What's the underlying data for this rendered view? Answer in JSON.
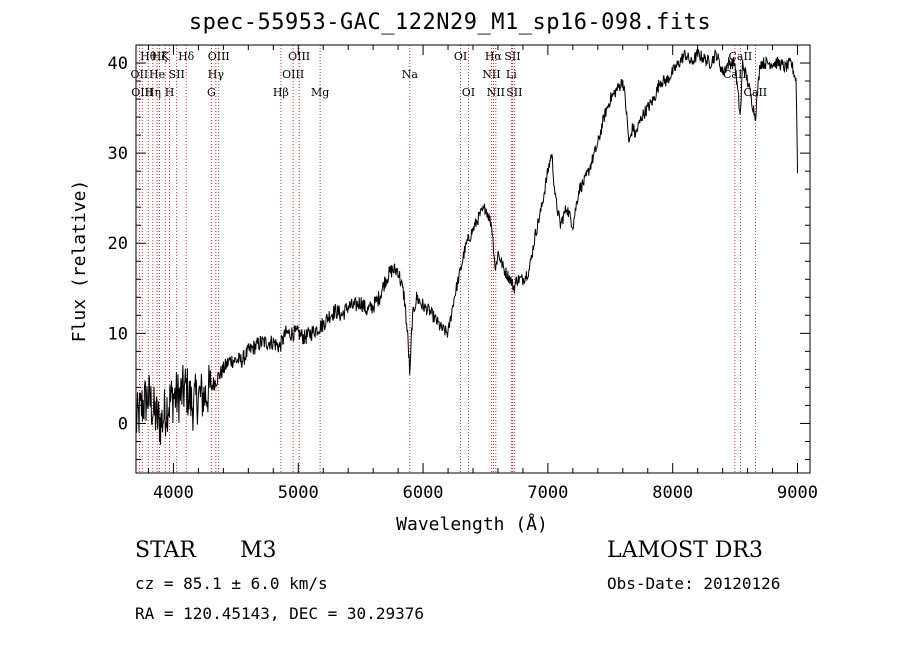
{
  "chart_data": {
    "type": "line",
    "title": "spec-55953-GAC_122N29_M1_sp16-098.fits",
    "xlabel": "Wavelength (Å)",
    "ylabel": "Flux (relative)",
    "xlim": [
      3700,
      9100
    ],
    "ylim": [
      -5.5,
      42
    ],
    "x_ticks": [
      4000,
      5000,
      6000,
      7000,
      8000,
      9000
    ],
    "y_ticks": [
      0,
      10,
      20,
      30,
      40
    ],
    "series": [
      {
        "name": "spectrum",
        "x": [
          3700,
          3750,
          3800,
          3850,
          3900,
          3950,
          4000,
          4050,
          4100,
          4150,
          4200,
          4250,
          4300,
          4350,
          4400,
          4450,
          4500,
          4550,
          4600,
          4650,
          4700,
          4750,
          4800,
          4850,
          4900,
          4950,
          5000,
          5050,
          5100,
          5150,
          5200,
          5250,
          5300,
          5350,
          5400,
          5450,
          5500,
          5550,
          5600,
          5650,
          5700,
          5750,
          5800,
          5850,
          5880,
          5895,
          5910,
          5930,
          5950,
          6000,
          6050,
          6100,
          6150,
          6200,
          6250,
          6300,
          6330,
          6350,
          6400,
          6450,
          6500,
          6550,
          6580,
          6600,
          6650,
          6700,
          6730,
          6750,
          6800,
          6850,
          6900,
          6950,
          7000,
          7030,
          7060,
          7100,
          7150,
          7200,
          7250,
          7300,
          7350,
          7400,
          7450,
          7500,
          7550,
          7600,
          7620,
          7650,
          7680,
          7700,
          7750,
          7800,
          7850,
          7900,
          7950,
          8000,
          8050,
          8100,
          8150,
          8200,
          8250,
          8300,
          8350,
          8400,
          8450,
          8498,
          8542,
          8560,
          8600,
          8662,
          8700,
          8750,
          8800,
          8850,
          8900,
          8950,
          8990,
          9000
        ],
        "y": [
          0,
          2,
          3,
          1,
          0,
          2,
          3,
          3,
          4,
          2,
          3,
          3,
          4,
          5,
          6,
          7,
          7,
          7,
          8,
          8.5,
          9,
          9,
          9,
          8.5,
          10,
          10,
          10,
          9.5,
          10,
          10.5,
          11,
          12,
          12.5,
          12,
          13,
          13,
          13.5,
          12.5,
          13,
          14,
          16,
          17,
          17,
          14,
          9,
          5,
          11,
          13,
          14,
          13,
          12.5,
          11.5,
          10.5,
          10,
          14,
          17,
          19,
          20,
          21.5,
          23,
          24,
          22,
          17,
          19,
          17,
          16,
          15,
          16,
          16,
          17,
          21,
          24,
          28,
          30,
          25,
          22,
          24,
          22,
          26,
          27,
          29,
          31,
          34,
          36,
          37,
          38,
          36,
          31,
          33,
          32,
          34,
          35,
          36,
          38,
          38,
          39,
          40,
          41,
          40,
          41,
          40.5,
          40,
          41,
          39,
          40,
          40,
          34,
          40,
          38,
          34,
          40,
          40,
          40,
          40,
          39.5,
          40,
          38,
          28
        ]
      }
    ],
    "line_markers": [
      {
        "x": 3727,
        "label": "OII",
        "row": 1
      },
      {
        "x": 3750,
        "label": "OIII",
        "row": 2
      },
      {
        "x": 3798,
        "label": "Hθ",
        "row": 0
      },
      {
        "x": 3835,
        "label": "Hη",
        "row": 2
      },
      {
        "x": 3869,
        "label": "He",
        "row": 1
      },
      {
        "x": 3889,
        "label": "Hζ",
        "row": 0
      },
      {
        "x": 3934,
        "label": "K",
        "row": 0
      },
      {
        "x": 3969,
        "label": "H",
        "row": 2
      },
      {
        "x": 4026,
        "label": "SII",
        "row": 1
      },
      {
        "x": 4102,
        "label": "Hδ",
        "row": 0
      },
      {
        "x": 4304,
        "label": "G",
        "row": 2
      },
      {
        "x": 4340,
        "label": "Hγ",
        "row": 1
      },
      {
        "x": 4363,
        "label": "OIII",
        "row": 0
      },
      {
        "x": 4861,
        "label": "Hβ",
        "row": 2
      },
      {
        "x": 4959,
        "label": "OIII",
        "row": 1
      },
      {
        "x": 5007,
        "label": "OIII",
        "row": 0
      },
      {
        "x": 5175,
        "label": "Mg",
        "row": 2
      },
      {
        "x": 5894,
        "label": "Na",
        "row": 1
      },
      {
        "x": 6300,
        "label": "OI",
        "row": 0
      },
      {
        "x": 6363,
        "label": "OI",
        "row": 2
      },
      {
        "x": 6548,
        "label": "NII",
        "row": 1
      },
      {
        "x": 6563,
        "label": "Hα",
        "row": 0
      },
      {
        "x": 6583,
        "label": "NII",
        "row": 2
      },
      {
        "x": 6707,
        "label": "Li",
        "row": 1
      },
      {
        "x": 6716,
        "label": "SII",
        "row": 0
      },
      {
        "x": 6731,
        "label": "SII",
        "row": 2
      },
      {
        "x": 8498,
        "label": "CaII",
        "row": 1
      },
      {
        "x": 8542,
        "label": "CaII",
        "row": 0
      },
      {
        "x": 8662,
        "label": "CaII",
        "row": 2
      }
    ]
  },
  "info": {
    "class_label": "STAR",
    "subclass": "M3",
    "survey": "LAMOST DR3",
    "cz": "cz = 85.1 ± 6.0 km/s",
    "obs_date": "Obs-Date: 20120126",
    "coords": "RA = 120.45143, DEC =  30.29376"
  }
}
